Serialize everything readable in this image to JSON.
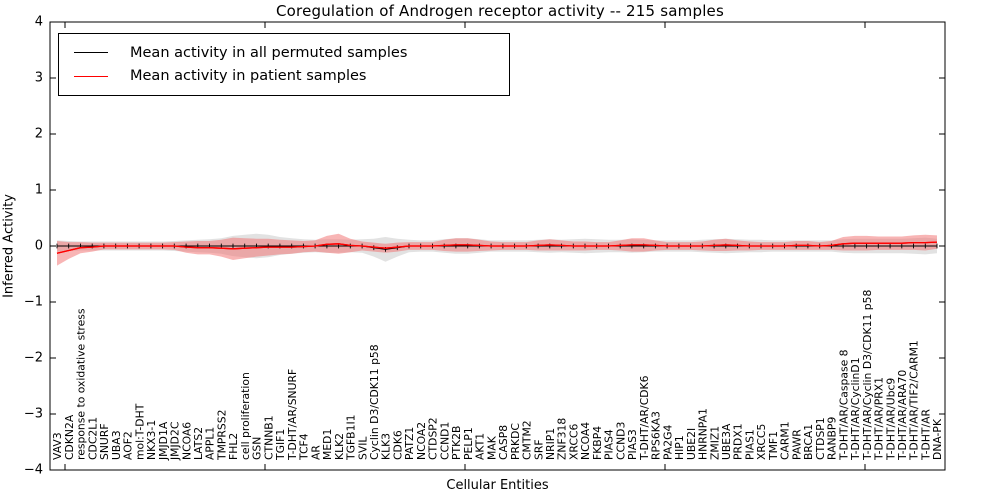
{
  "chart_data": {
    "type": "line",
    "title": "Coregulation of Androgen receptor activity -- 215 samples",
    "xlabel": "Cellular Entities",
    "ylabel": "Inferred Activity",
    "ylim": [
      -4,
      4
    ],
    "ytick_values": [
      4,
      3,
      2,
      1,
      0,
      -1,
      -2,
      -3,
      -4
    ],
    "ytick_labels": [
      "4",
      "3",
      "2",
      "1",
      "0",
      "−1",
      "−2",
      "−3",
      "−4"
    ],
    "grid": false,
    "legend_position": "upper left",
    "categories": [
      "VAV3",
      "CDKN2A",
      "response to oxidative stress",
      "CDC2L1",
      "SNURF",
      "UBA3",
      "AOF2",
      "mol:T-DHT",
      "NKX3-1",
      "JMJD1A",
      "JMJD2C",
      "NCOA6",
      "LATS2",
      "APPL1",
      "TMPRSS2",
      "FHL2",
      "cell proliferation",
      "GSN",
      "CTNNB1",
      "TGIF1",
      "T-DHT/AR/SNURF",
      "TCF4",
      "AR",
      "MED1",
      "KLK2",
      "TGFB1I1",
      "SVIL",
      "Cyclin D3/CDK11 p58",
      "KLK3",
      "CDK6",
      "PATZ1",
      "NCOA2",
      "CTDSP2",
      "CCND1",
      "PTK2B",
      "PELP1",
      "AKT1",
      "MAK",
      "CASP8",
      "PRKDC",
      "CMTM2",
      "SRF",
      "NRIP1",
      "ZNF318",
      "XRCC6",
      "NCOA4",
      "FKBP4",
      "PIAS4",
      "CCND3",
      "PIAS3",
      "T-DHT/AR/CDK6",
      "RPS6KA3",
      "PA2G4",
      "HIP1",
      "UBE2I",
      "HNRNPA1",
      "ZMIZ1",
      "UBE3A",
      "PRDX1",
      "PIAS1",
      "XRCC5",
      "TMF1",
      "CARM1",
      "PAWR",
      "BRCA1",
      "CTDSP1",
      "RANBP9",
      "T-DHT/AR/Caspase 8",
      "T-DHT/AR/CyclinD1",
      "T-DHT/AR/Cyclin D3/CDK11 p58",
      "T-DHT/AR/PRX1",
      "T-DHT/AR/Ubc9",
      "T-DHT/AR/ARA70",
      "T-DHT/AR/TIF2/CARM1",
      "T-DHT/AR",
      "DNA-PK"
    ],
    "series": [
      {
        "name": "Mean activity in all permuted samples",
        "color": "#000000",
        "band_color": "#bebebe",
        "band_opacity": 0.45,
        "values": [
          0,
          0,
          0,
          0,
          0,
          0,
          0,
          0,
          0,
          0,
          0,
          0,
          0,
          0,
          0,
          0,
          0,
          0,
          0,
          0,
          0,
          0,
          0,
          0,
          0,
          0,
          0,
          -0.03,
          -0.06,
          -0.03,
          0,
          0,
          0,
          0,
          0,
          0,
          0,
          0,
          0,
          0,
          0,
          0,
          0,
          0,
          0,
          0,
          0,
          0,
          0,
          0,
          0,
          0,
          0,
          0,
          0,
          0,
          0,
          0,
          0,
          0,
          0,
          0,
          0,
          0,
          0,
          0,
          0,
          0,
          0,
          0,
          0,
          0,
          0,
          0,
          0,
          0
        ],
        "band_halfwidth": [
          0.1,
          0.09,
          0.08,
          0.08,
          0.08,
          0.08,
          0.08,
          0.08,
          0.08,
          0.08,
          0.09,
          0.1,
          0.11,
          0.12,
          0.14,
          0.18,
          0.2,
          0.22,
          0.2,
          0.16,
          0.14,
          0.12,
          0.11,
          0.12,
          0.12,
          0.11,
          0.12,
          0.16,
          0.22,
          0.16,
          0.11,
          0.1,
          0.1,
          0.12,
          0.14,
          0.14,
          0.12,
          0.1,
          0.1,
          0.1,
          0.1,
          0.11,
          0.12,
          0.11,
          0.12,
          0.13,
          0.12,
          0.11,
          0.11,
          0.12,
          0.11,
          0.1,
          0.1,
          0.1,
          0.1,
          0.11,
          0.12,
          0.13,
          0.12,
          0.11,
          0.11,
          0.1,
          0.1,
          0.1,
          0.1,
          0.1,
          0.1,
          0.12,
          0.13,
          0.13,
          0.13,
          0.13,
          0.13,
          0.14,
          0.15,
          0.13
        ]
      },
      {
        "name": "Mean activity in patient samples",
        "color": "#ff0000",
        "band_color": "#f26c6c",
        "band_opacity": 0.5,
        "values": [
          -0.13,
          -0.08,
          -0.03,
          -0.02,
          0,
          0,
          0,
          0,
          0,
          0,
          0,
          -0.02,
          -0.03,
          -0.03,
          -0.04,
          -0.05,
          -0.04,
          -0.03,
          -0.02,
          -0.02,
          -0.02,
          -0.01,
          0,
          0.03,
          0.04,
          0.01,
          0,
          -0.02,
          -0.04,
          -0.02,
          0,
          0,
          0,
          0.01,
          0.02,
          0.02,
          0.01,
          0,
          0,
          0,
          0,
          0.01,
          0.02,
          0.01,
          0,
          0,
          0,
          0,
          0.01,
          0.02,
          0.02,
          0.01,
          0,
          0,
          0,
          0,
          0.01,
          0.02,
          0.01,
          0,
          0,
          0,
          0,
          0.01,
          0.01,
          0,
          0.01,
          0.04,
          0.05,
          0.05,
          0.05,
          0.05,
          0.05,
          0.06,
          0.06,
          0.07
        ],
        "band_halfwidth": [
          0.22,
          0.15,
          0.1,
          0.08,
          0.06,
          0.06,
          0.06,
          0.06,
          0.06,
          0.06,
          0.07,
          0.1,
          0.12,
          0.12,
          0.15,
          0.2,
          0.18,
          0.16,
          0.15,
          0.13,
          0.12,
          0.1,
          0.1,
          0.15,
          0.18,
          0.12,
          0.08,
          0.08,
          0.08,
          0.08,
          0.07,
          0.07,
          0.07,
          0.1,
          0.12,
          0.12,
          0.1,
          0.08,
          0.07,
          0.07,
          0.07,
          0.09,
          0.1,
          0.09,
          0.08,
          0.08,
          0.07,
          0.07,
          0.09,
          0.12,
          0.12,
          0.09,
          0.07,
          0.07,
          0.07,
          0.08,
          0.1,
          0.11,
          0.09,
          0.08,
          0.07,
          0.07,
          0.07,
          0.08,
          0.08,
          0.07,
          0.08,
          0.12,
          0.13,
          0.13,
          0.12,
          0.12,
          0.12,
          0.13,
          0.14,
          0.12
        ]
      }
    ]
  }
}
